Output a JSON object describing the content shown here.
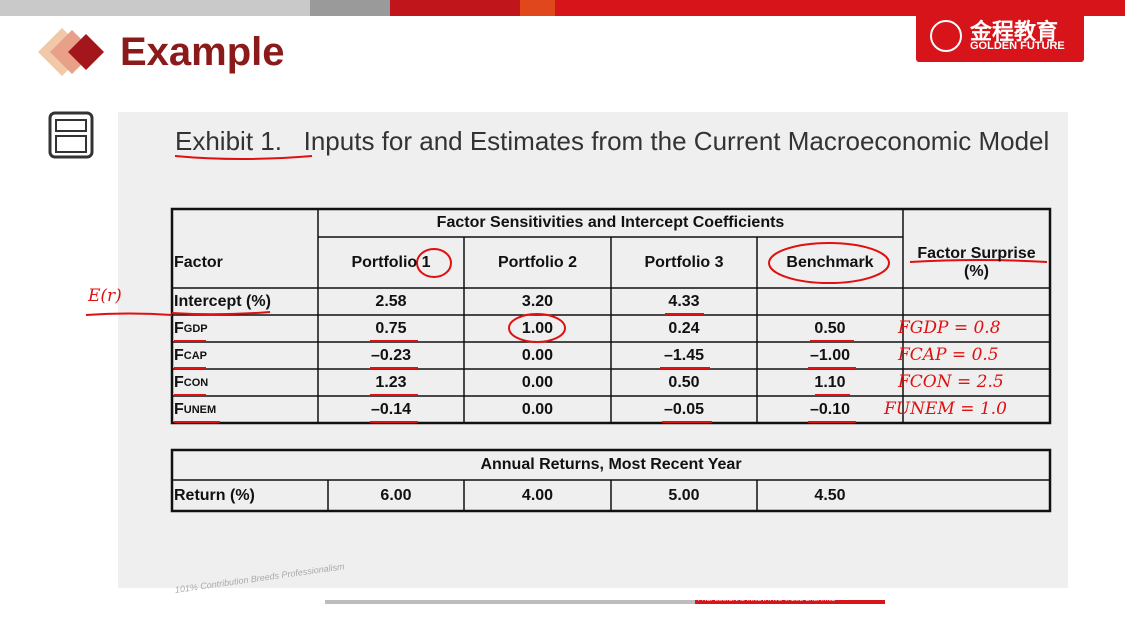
{
  "header": {
    "title": "Example",
    "logo": {
      "name": "金程教育",
      "tagline": "GOLDEN FUTURE"
    }
  },
  "exhibit": {
    "label": "Exhibit 1.",
    "caption": "Inputs for and Estimates from the Current Macroeconomic Model"
  },
  "table": {
    "group_header": "Factor Sensitivities and Intercept Coefficients",
    "columns": [
      "Factor",
      "Portfolio 1",
      "Portfolio 2",
      "Portfolio 3",
      "Benchmark",
      "Factor Surprise (%)"
    ],
    "rows": [
      {
        "factor": "Intercept (%)",
        "values": [
          "2.58",
          "3.20",
          "4.33"
        ]
      },
      {
        "factor": {
          "main": "F",
          "sub": "GDP"
        },
        "values": [
          "0.75",
          "1.00",
          "0.24",
          "0.50"
        ]
      },
      {
        "factor": {
          "main": "F",
          "sub": "CAP"
        },
        "values": [
          "–0.23",
          "0.00",
          "–1.45",
          "–1.00"
        ]
      },
      {
        "factor": {
          "main": "F",
          "sub": "CON"
        },
        "values": [
          "1.23",
          "0.00",
          "0.50",
          "1.10"
        ]
      },
      {
        "factor": {
          "main": "F",
          "sub": "UNEM"
        },
        "values": [
          "–0.14",
          "0.00",
          "–0.05",
          "–0.10"
        ]
      }
    ]
  },
  "returns_table": {
    "title": "Annual Returns, Most Recent Year",
    "row_label": "Return (%)",
    "values": [
      "6.00",
      "4.00",
      "5.00",
      "4.50"
    ]
  },
  "annotations": [
    "E(r)",
    "FGDP = 0.8",
    "FCAP = 0.5",
    "FCON = 2.5",
    "FUNEM = 1.0"
  ],
  "footer": {
    "slogan": "101% Contribution Breeds Professionalism",
    "motto": "PROFESSIONAL·INNOVATIVE·VALUE CREATING"
  }
}
